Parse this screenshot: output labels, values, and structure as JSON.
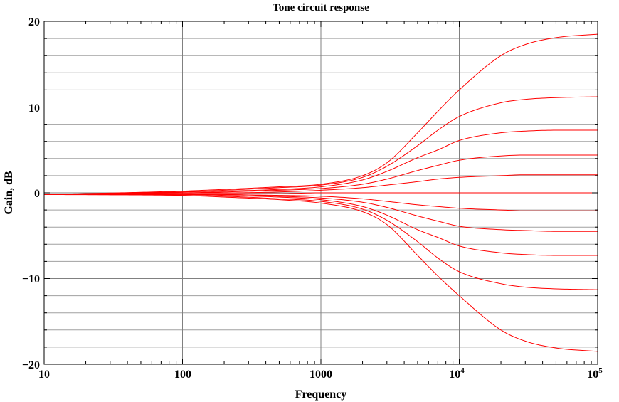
{
  "chart_data": {
    "type": "line",
    "title": "Tone circuit response",
    "xlabel": "Frequency",
    "ylabel": "Gain, dB",
    "xscale": "log",
    "xlim": [
      10,
      100000
    ],
    "ylim": [
      -20,
      20
    ],
    "grid": true,
    "x_tick_labels": [
      "10",
      "100",
      "1000",
      "10",
      "10"
    ],
    "x_tick_exponents": [
      "",
      "",
      "",
      "4",
      "5"
    ],
    "y_tick_labels": [
      "20",
      "10",
      "0",
      "−10",
      "−20"
    ],
    "y_ticks": [
      20,
      10,
      0,
      -10,
      -20
    ],
    "colors": {
      "series": "#ff0000",
      "major_grid": "#808080",
      "minor_grid": "#a0a0a0"
    },
    "x": [
      10,
      100,
      200,
      500,
      1000,
      2000,
      3000,
      5000,
      7000,
      10000,
      20000,
      30000,
      50000,
      100000
    ],
    "series": [
      {
        "values": [
          -0.2,
          0.2,
          0.4,
          0.7,
          1.0,
          2.0,
          3.5,
          7.0,
          9.5,
          12.0,
          16.0,
          17.3,
          18.1,
          18.5
        ]
      },
      {
        "values": [
          -0.2,
          0.1,
          0.3,
          0.6,
          0.9,
          1.8,
          3.1,
          5.5,
          7.3,
          8.9,
          10.5,
          10.9,
          11.1,
          11.2
        ]
      },
      {
        "values": [
          -0.2,
          0.1,
          0.2,
          0.4,
          0.7,
          1.5,
          2.5,
          4.1,
          5.0,
          6.1,
          7.0,
          7.2,
          7.3,
          7.3
        ]
      },
      {
        "values": [
          -0.2,
          0.0,
          0.1,
          0.3,
          0.5,
          1.0,
          1.6,
          2.6,
          3.2,
          3.8,
          4.3,
          4.4,
          4.4,
          4.4
        ]
      },
      {
        "values": [
          -0.2,
          0.0,
          0.0,
          0.1,
          0.3,
          0.6,
          0.9,
          1.3,
          1.6,
          1.8,
          2.0,
          2.1,
          2.1,
          2.1
        ]
      },
      {
        "values": [
          -0.2,
          -0.1,
          -0.1,
          -0.1,
          0.0,
          0.0,
          0.0,
          0.0,
          0.0,
          0.0,
          0.0,
          0.0,
          0.0,
          0.0
        ]
      },
      {
        "values": [
          -0.2,
          -0.1,
          -0.2,
          -0.3,
          -0.4,
          -0.7,
          -1.0,
          -1.4,
          -1.6,
          -1.8,
          -2.0,
          -2.1,
          -2.1,
          -2.1
        ]
      },
      {
        "values": [
          -0.2,
          -0.2,
          -0.2,
          -0.4,
          -0.6,
          -1.1,
          -1.7,
          -2.7,
          -3.3,
          -3.9,
          -4.3,
          -4.4,
          -4.5,
          -4.5
        ]
      },
      {
        "values": [
          -0.2,
          -0.2,
          -0.3,
          -0.5,
          -0.8,
          -1.6,
          -2.6,
          -4.3,
          -5.2,
          -6.2,
          -7.0,
          -7.2,
          -7.3,
          -7.3
        ]
      },
      {
        "values": [
          -0.2,
          -0.3,
          -0.4,
          -0.7,
          -1.0,
          -1.9,
          -3.2,
          -5.7,
          -7.6,
          -9.2,
          -10.6,
          -11.0,
          -11.2,
          -11.3
        ]
      },
      {
        "values": [
          -0.2,
          -0.3,
          -0.5,
          -0.8,
          -1.2,
          -2.2,
          -3.7,
          -7.3,
          -9.7,
          -12.0,
          -16.0,
          -17.3,
          -18.1,
          -18.5
        ]
      }
    ]
  }
}
